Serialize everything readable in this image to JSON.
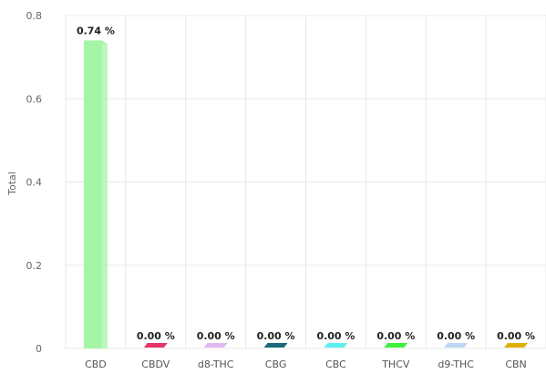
{
  "chart_data": {
    "type": "bar",
    "categories": [
      "CBD",
      "CBDV",
      "d8-THC",
      "CBG",
      "CBC",
      "THCV",
      "d9-THC",
      "CBN"
    ],
    "values": [
      0.74,
      0.0,
      0.0,
      0.0,
      0.0,
      0.0,
      0.0,
      0.0
    ],
    "data_labels": [
      "0.74 %",
      "0.00 %",
      "0.00 %",
      "0.00 %",
      "0.00 %",
      "0.00 %",
      "0.00 %",
      "0.00 %"
    ],
    "colors": [
      "#a6f5a6",
      "#e8336b",
      "#e2b8f0",
      "#1b6a78",
      "#5cf0f0",
      "#3df03d",
      "#bcd8f5",
      "#e0b000"
    ],
    "ylabel": "Total",
    "ylim": [
      0,
      0.8
    ],
    "yticks": [
      0,
      0.2,
      0.4,
      0.6,
      0.8
    ],
    "ytick_labels": [
      "0",
      "0.2",
      "0.4",
      "0.6",
      "0.8"
    ],
    "grid": true,
    "legend": "none"
  }
}
